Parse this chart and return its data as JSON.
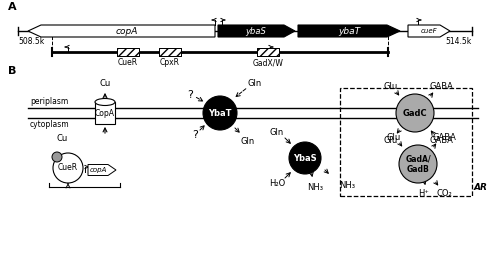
{
  "title_A": "A",
  "title_B": "B",
  "pos_508": "508.5k",
  "pos_514": "514.5k",
  "gene_copA": "copA",
  "gene_ybaS": "ybaS",
  "gene_ybaT": "ybaT",
  "gene_cueF": "cueF",
  "reg_CueR": "CueR",
  "reg_CpxR": "CpxR",
  "reg_GadXW": "GadX/W",
  "label_periplasm": "periplasm",
  "label_cytoplasm": "cytoplasm",
  "label_Cu": "Cu",
  "label_Gln1": "Gln",
  "label_Gln2": "Gln",
  "label_Glu1": "Glu",
  "label_Glu2": "Glu",
  "label_GABA1": "GABA",
  "label_GABA2": "GABA",
  "label_GadC": "GadC",
  "label_GadAB": "GadA/\nGadB",
  "label_YbaT": "YbaT",
  "label_YbaS": "YbaS",
  "label_CopA": "CopA",
  "label_CueR": "CueR",
  "label_H2O": "H₂O",
  "label_NH3": "NH₃",
  "label_H": "H⁺",
  "label_CO2": "CO₂",
  "label_AR": "AR",
  "bg_color": "#ffffff"
}
